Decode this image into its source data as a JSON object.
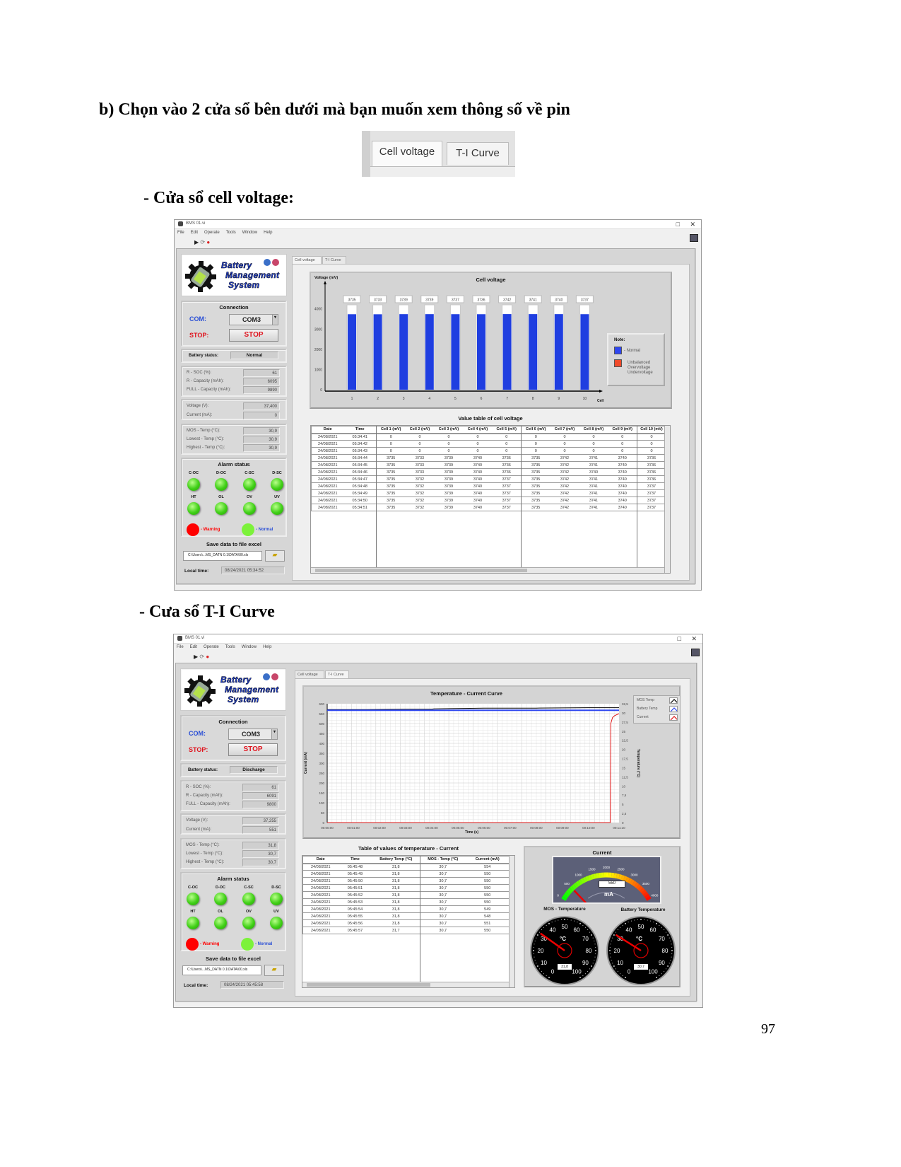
{
  "page": {
    "heading": "b) Chọn vào 2 cửa sổ bên dưới mà bạn muốn xem thông số về pin",
    "tab_image": {
      "tabs": [
        "Cell voltage",
        "T-I Curve"
      ]
    },
    "section1_label": "- Cửa sổ cell voltage:",
    "section2_label": "-  Cưa sổ T-I Curve",
    "page_number": "97"
  },
  "colors": {
    "led_green": "#4fd61f",
    "warning_red": "#ff0000",
    "label_blue": "#2a4fd6",
    "stop_red": "#e0141e",
    "bar_blue": "#1f3ee0",
    "gauge_bg": "#5c6078"
  },
  "cell_voltage_window": {
    "title": "BMS 01.vi",
    "menu": [
      "File",
      "Edit",
      "Operate",
      "Tools",
      "Window",
      "Help"
    ],
    "tabs": [
      "Cell voltage",
      "T-I Curve"
    ],
    "active_tab": "Cell voltage",
    "left_panel": {
      "logo_text": [
        "Battery",
        "Management",
        "System"
      ],
      "connection_title": "Connection",
      "com_label": "COM:",
      "com_value": "COM3",
      "stop_label": "STOP:",
      "stop_button": "STOP",
      "battery_status_label": "Battery status:",
      "battery_status": "Normal",
      "capacity_rows": [
        {
          "label": "R - SOC (%):",
          "value": "61"
        },
        {
          "label": "R - Capacity (mAh):",
          "value": "6095"
        },
        {
          "label": "FULL - Capacity (mAh):",
          "value": "9890"
        }
      ],
      "power_rows": [
        {
          "label": "Voltage (V):",
          "value": "37,400"
        },
        {
          "label": "Current (mA):",
          "value": "0"
        }
      ],
      "temp_rows": [
        {
          "label": "MOS - Temp (°C):",
          "value": "30,9"
        },
        {
          "label": "Lowest - Temp (°C):",
          "value": "30,9"
        },
        {
          "label": "Highest - Temp (°C):",
          "value": "30,9"
        }
      ],
      "alarm_title": "Alarm status",
      "alarms": [
        {
          "label": "C-OC",
          "state": "normal"
        },
        {
          "label": "D-OC",
          "state": "normal"
        },
        {
          "label": "C-SC",
          "state": "normal"
        },
        {
          "label": "D-SC",
          "state": "normal"
        },
        {
          "label": "HT",
          "state": "normal"
        },
        {
          "label": "OL",
          "state": "normal"
        },
        {
          "label": "OV",
          "state": "normal"
        },
        {
          "label": "UV",
          "state": "normal"
        }
      ],
      "warning_label": "- Warning",
      "normal_label": "- Normal",
      "save_title": "Save data to file excel",
      "save_path": "C:\\Users\\...MS_DATN 0.1\\DATA\\00.xls",
      "local_time_label": "Local time:",
      "local_time": "08/24/2021  05:34:52"
    },
    "chart": {
      "title": "Cell voltage",
      "ylabel": "Voltage (mV)",
      "xlabel": "Cell",
      "legend_title": "Note:",
      "legend": [
        {
          "label": "- Normal",
          "color": "#2f47f0"
        },
        {
          "label": "Unbalanced\nOvervoltage\nUndervoltage",
          "color": "#f04a2a"
        }
      ]
    },
    "table": {
      "title": "Value table of cell voltage",
      "columns": [
        "Date",
        "Time",
        "Cell 1 (mV)",
        "Cell 2 (mV)",
        "Cell 3 (mV)",
        "Cell 4 (mV)",
        "Cell 5 (mV)",
        "Cell 6 (mV)",
        "Cell 7 (mV)",
        "Cell 8 (mV)",
        "Cell 9 (mV)",
        "Cell 10 (mV)"
      ],
      "rows": [
        [
          "24/08/2021",
          "05:34:41",
          "0",
          "0",
          "0",
          "0",
          "0",
          "0",
          "0",
          "0",
          "0",
          "0"
        ],
        [
          "24/08/2021",
          "05:34:42",
          "0",
          "0",
          "0",
          "0",
          "0",
          "0",
          "0",
          "0",
          "0",
          "0"
        ],
        [
          "24/08/2021",
          "05:34:43",
          "0",
          "0",
          "0",
          "0",
          "0",
          "0",
          "0",
          "0",
          "0",
          "0"
        ],
        [
          "24/08/2021",
          "05:34:44",
          "3735",
          "3733",
          "3739",
          "3740",
          "3736",
          "3735",
          "3742",
          "3741",
          "3740",
          "3736"
        ],
        [
          "24/08/2021",
          "05:34:45",
          "3735",
          "3733",
          "3739",
          "3740",
          "3736",
          "3735",
          "3742",
          "3741",
          "3740",
          "3736"
        ],
        [
          "24/08/2021",
          "05:34:46",
          "3735",
          "3733",
          "3739",
          "3740",
          "3736",
          "3735",
          "3742",
          "3740",
          "3740",
          "3736"
        ],
        [
          "24/08/2021",
          "05:34:47",
          "3735",
          "3732",
          "3739",
          "3740",
          "3737",
          "3735",
          "3742",
          "3741",
          "3740",
          "3736"
        ],
        [
          "24/08/2021",
          "05:34:48",
          "3735",
          "3732",
          "3739",
          "3740",
          "3737",
          "3735",
          "3742",
          "3741",
          "3740",
          "3737"
        ],
        [
          "24/08/2021",
          "05:34:49",
          "3735",
          "3732",
          "3739",
          "3740",
          "3737",
          "3735",
          "3742",
          "3741",
          "3740",
          "3737"
        ],
        [
          "24/08/2021",
          "05:34:50",
          "3735",
          "3732",
          "3739",
          "3740",
          "3737",
          "3735",
          "3742",
          "3741",
          "3740",
          "3737"
        ],
        [
          "24/08/2021",
          "05:34:51",
          "3735",
          "3732",
          "3739",
          "3740",
          "3737",
          "3735",
          "3742",
          "3741",
          "3740",
          "3737"
        ]
      ]
    }
  },
  "ti_curve_window": {
    "title": "BMS 01.vi",
    "menu": [
      "File",
      "Edit",
      "Operate",
      "Tools",
      "Window",
      "Help"
    ],
    "tabs": [
      "Cell voltage",
      "T-I Curve"
    ],
    "active_tab": "T-I Curve",
    "left_panel": {
      "logo_text": [
        "Battery",
        "Management",
        "System"
      ],
      "connection_title": "Connection",
      "com_label": "COM:",
      "com_value": "COM3",
      "stop_label": "STOP:",
      "stop_button": "STOP",
      "battery_status_label": "Battery status:",
      "battery_status": "Discharge",
      "capacity_rows": [
        {
          "label": "R - SOC (%):",
          "value": "61"
        },
        {
          "label": "R - Capacity (mAh):",
          "value": "6091"
        },
        {
          "label": "FULL - Capacity (mAh):",
          "value": "9800"
        }
      ],
      "power_rows": [
        {
          "label": "Voltage (V):",
          "value": "37,255"
        },
        {
          "label": "Current (mA):",
          "value": "551"
        }
      ],
      "temp_rows": [
        {
          "label": "MOS - Temp (°C):",
          "value": "31,8"
        },
        {
          "label": "Lowest - Temp (°C):",
          "value": "30,7"
        },
        {
          "label": "Highest - Temp (°C):",
          "value": "30,7"
        }
      ],
      "alarm_title": "Alarm status",
      "alarms": [
        {
          "label": "C-OC",
          "state": "normal"
        },
        {
          "label": "D-OC",
          "state": "normal"
        },
        {
          "label": "C-SC",
          "state": "normal"
        },
        {
          "label": "D-SC",
          "state": "normal"
        },
        {
          "label": "HT",
          "state": "normal"
        },
        {
          "label": "OL",
          "state": "normal"
        },
        {
          "label": "OV",
          "state": "normal"
        },
        {
          "label": "UV",
          "state": "normal"
        }
      ],
      "warning_label": "- Warning",
      "normal_label": "- Normal",
      "save_title": "Save data to file excel",
      "save_path": "C:\\Users\\...MS_DATN 0.1\\DATA\\00.xls",
      "local_time_label": "Local time:",
      "local_time": "08/24/2021  05:45:58"
    },
    "chart": {
      "title": "Temperature - Current Curve",
      "ylabel": "Current (mA)",
      "y2label": "Temperature (°C)",
      "xlabel": "Time (s)",
      "legend": [
        {
          "label": "MOS Temp",
          "color": "#000000"
        },
        {
          "label": "Battery Temp",
          "color": "#2f47f0"
        },
        {
          "label": "Current",
          "color": "#e01818"
        }
      ]
    },
    "table": {
      "title": "Table of values of temperature - Current",
      "columns": [
        "Date",
        "Time",
        "Battery Temp (°C)",
        "MOS -  Temp (°C)",
        "Current (mA)"
      ],
      "rows": [
        [
          "24/08/2021",
          "05:45:48",
          "31,8",
          "30,7",
          "554"
        ],
        [
          "24/08/2021",
          "05:45:49",
          "31,8",
          "30,7",
          "550"
        ],
        [
          "24/08/2021",
          "05:45:50",
          "31,8",
          "30,7",
          "550"
        ],
        [
          "24/08/2021",
          "05:45:51",
          "31,8",
          "30,7",
          "550"
        ],
        [
          "24/08/2021",
          "05:45:52",
          "31,8",
          "30,7",
          "550"
        ],
        [
          "24/08/2021",
          "05:45:53",
          "31,8",
          "30,7",
          "550"
        ],
        [
          "24/08/2021",
          "05:45:54",
          "31,8",
          "30,7",
          "549"
        ],
        [
          "24/08/2021",
          "05:45:55",
          "31,8",
          "30,7",
          "548"
        ],
        [
          "24/08/2021",
          "05:45:56",
          "31,8",
          "30,7",
          "551"
        ],
        [
          "24/08/2021",
          "05:45:57",
          "31,7",
          "30,7",
          "550"
        ]
      ]
    },
    "gauges": {
      "current": {
        "title": "Current",
        "unit": "mA",
        "value": 550,
        "display": "550",
        "min": 0,
        "max": 4000,
        "ticks": [
          "0",
          "500",
          "1000",
          "1500",
          "2000",
          "2500",
          "3000",
          "3500",
          "4000"
        ]
      },
      "mos_temp": {
        "title": "MOS - Temperature",
        "unit": "°C",
        "value": 31.8,
        "display": "31,8",
        "min": 0,
        "max": 100,
        "ticks": [
          "0",
          "10",
          "20",
          "30",
          "40",
          "50",
          "60",
          "70",
          "80",
          "90",
          "100"
        ]
      },
      "battery_temp": {
        "title": "Battery Temperature",
        "unit": "°C",
        "value": 30.7,
        "display": "30,7",
        "min": 0,
        "max": 100,
        "ticks": [
          "0",
          "10",
          "20",
          "30",
          "40",
          "50",
          "60",
          "70",
          "80",
          "90",
          "100"
        ]
      }
    }
  },
  "chart_data": [
    {
      "type": "bar",
      "title": "Cell voltage",
      "categories": [
        "1",
        "2",
        "3",
        "4",
        "5",
        "6",
        "7",
        "8",
        "9",
        "10"
      ],
      "values": [
        3735,
        3733,
        3739,
        3739,
        3737,
        3736,
        3742,
        3741,
        3740,
        3737
      ],
      "value_labels": [
        "3735",
        "3733",
        "3739",
        "3739",
        "3737",
        "3736",
        "3742",
        "3741",
        "3740",
        "3737"
      ],
      "xlabel": "Cell",
      "ylabel": "Voltage (mV)",
      "ylim": [
        0,
        4200
      ],
      "yticks": [
        0,
        1000,
        2000,
        3000,
        4000
      ],
      "legend": "right"
    },
    {
      "type": "line",
      "title": "Temperature - Current Curve",
      "xlabel": "Time (s)",
      "ylabel": "Current (mA)",
      "y2label": "Temperature (°C)",
      "xticks": [
        "00:00:00",
        "00:01:00",
        "00:02:00",
        "00:03:00",
        "00:04:00",
        "00:05:00",
        "00:06:00",
        "00:07:00",
        "00:08:00",
        "00:09:00",
        "00:10:00",
        "00:11:10"
      ],
      "xlim": [
        "00:00:00",
        "00:11:10"
      ],
      "ylim": [
        0,
        600
      ],
      "yticks": [
        0,
        50,
        100,
        150,
        200,
        250,
        300,
        350,
        400,
        450,
        500,
        550,
        600
      ],
      "y2lim": [
        0,
        32.5
      ],
      "y2ticks": [
        "0",
        "2,5",
        "5",
        "7,5",
        "10",
        "12,5",
        "15",
        "17,5",
        "20",
        "22,5",
        "25",
        "27,5",
        "30",
        "32,5"
      ],
      "grid": true,
      "legend": "top-right",
      "series": [
        {
          "name": "MOS Temp",
          "axis": "right",
          "color": "#000000",
          "points": [
            [
              "00:00:00",
              30.9
            ],
            [
              "00:01:30",
              30.9
            ],
            [
              "00:03:00",
              31.0
            ],
            [
              "00:04:00",
              31.0
            ],
            [
              "00:04:05",
              31.1
            ],
            [
              "00:06:00",
              31.3
            ],
            [
              "00:08:00",
              31.3
            ],
            [
              "00:10:00",
              31.4
            ],
            [
              "00:11:10",
              31.4
            ]
          ]
        },
        {
          "name": "Battery Temp",
          "axis": "right",
          "color": "#2f47f0",
          "points": [
            [
              "00:00:00",
              30.7
            ],
            [
              "00:11:10",
              30.7
            ]
          ]
        },
        {
          "name": "Current",
          "axis": "left",
          "color": "#e01818",
          "points": [
            [
              "00:00:00",
              0
            ],
            [
              "00:10:50",
              0
            ],
            [
              "00:10:51",
              500
            ],
            [
              "00:10:55",
              530
            ],
            [
              "00:11:00",
              540
            ],
            [
              "00:11:10",
              550
            ]
          ]
        }
      ]
    }
  ]
}
